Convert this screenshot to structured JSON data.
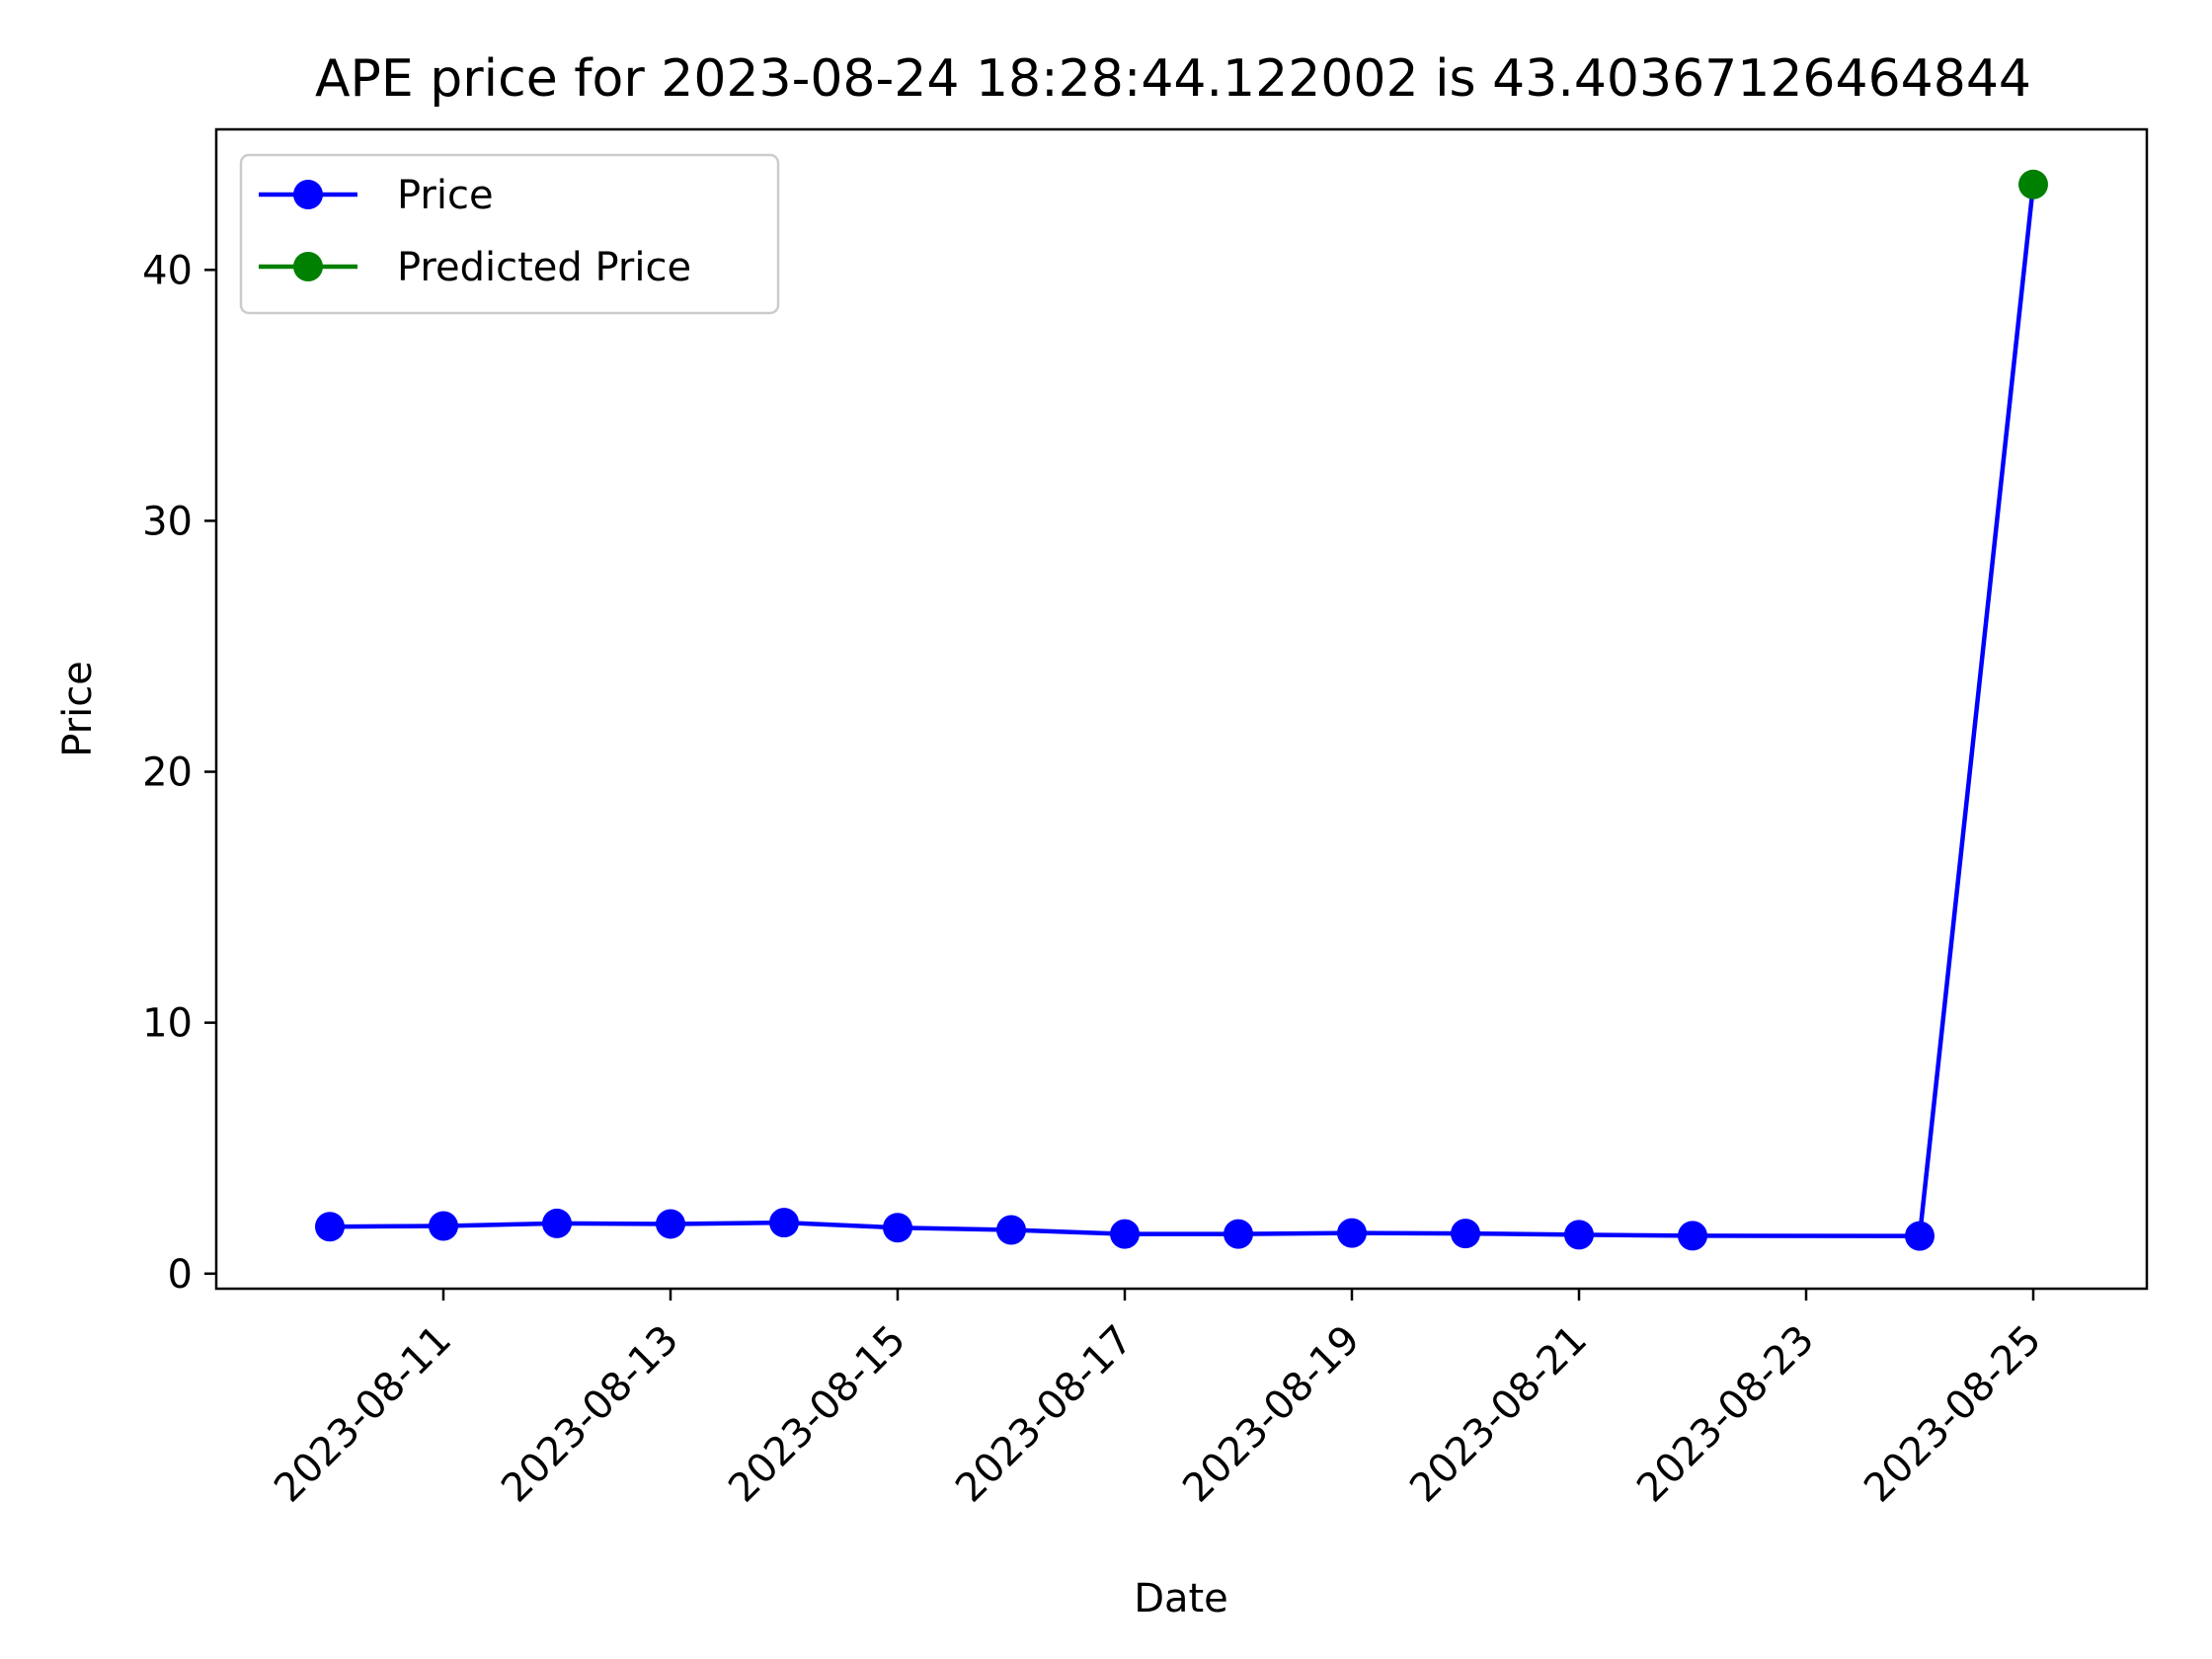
{
  "chart_data": {
    "type": "line",
    "title": "APE price for 2023-08-24 18:28:44.122002 is 43.40367126464844",
    "xlabel": "Date",
    "ylabel": "Price",
    "x_ticks": [
      "2023-08-11",
      "2023-08-13",
      "2023-08-15",
      "2023-08-17",
      "2023-08-19",
      "2023-08-21",
      "2023-08-23",
      "2023-08-25"
    ],
    "y_ticks": [
      0,
      10,
      20,
      30,
      40
    ],
    "xlim": [
      "2023-08-09",
      "2023-08-26"
    ],
    "ylim": [
      -0.6,
      45.6
    ],
    "grid": false,
    "legend_position": "top-left",
    "series": [
      {
        "name": "Price",
        "color": "#0000ff",
        "marker": "circle",
        "points": [
          {
            "x": "2023-08-10",
            "y": 1.87
          },
          {
            "x": "2023-08-11",
            "y": 1.9
          },
          {
            "x": "2023-08-12",
            "y": 2.0
          },
          {
            "x": "2023-08-13",
            "y": 1.98
          },
          {
            "x": "2023-08-14",
            "y": 2.03
          },
          {
            "x": "2023-08-15",
            "y": 1.83
          },
          {
            "x": "2023-08-16",
            "y": 1.74
          },
          {
            "x": "2023-08-17",
            "y": 1.58
          },
          {
            "x": "2023-08-18",
            "y": 1.58
          },
          {
            "x": "2023-08-19",
            "y": 1.62
          },
          {
            "x": "2023-08-20",
            "y": 1.6
          },
          {
            "x": "2023-08-21",
            "y": 1.55
          },
          {
            "x": "2023-08-22",
            "y": 1.51
          },
          {
            "x": "2023-08-24",
            "y": 1.5
          },
          {
            "x": "2023-08-25",
            "y": 43.40367126464844
          }
        ],
        "show_marker_on_last": false
      },
      {
        "name": "Predicted Price",
        "color": "#008000",
        "marker": "circle",
        "points": [
          {
            "x": "2023-08-25",
            "y": 43.40367126464844
          }
        ]
      }
    ]
  }
}
